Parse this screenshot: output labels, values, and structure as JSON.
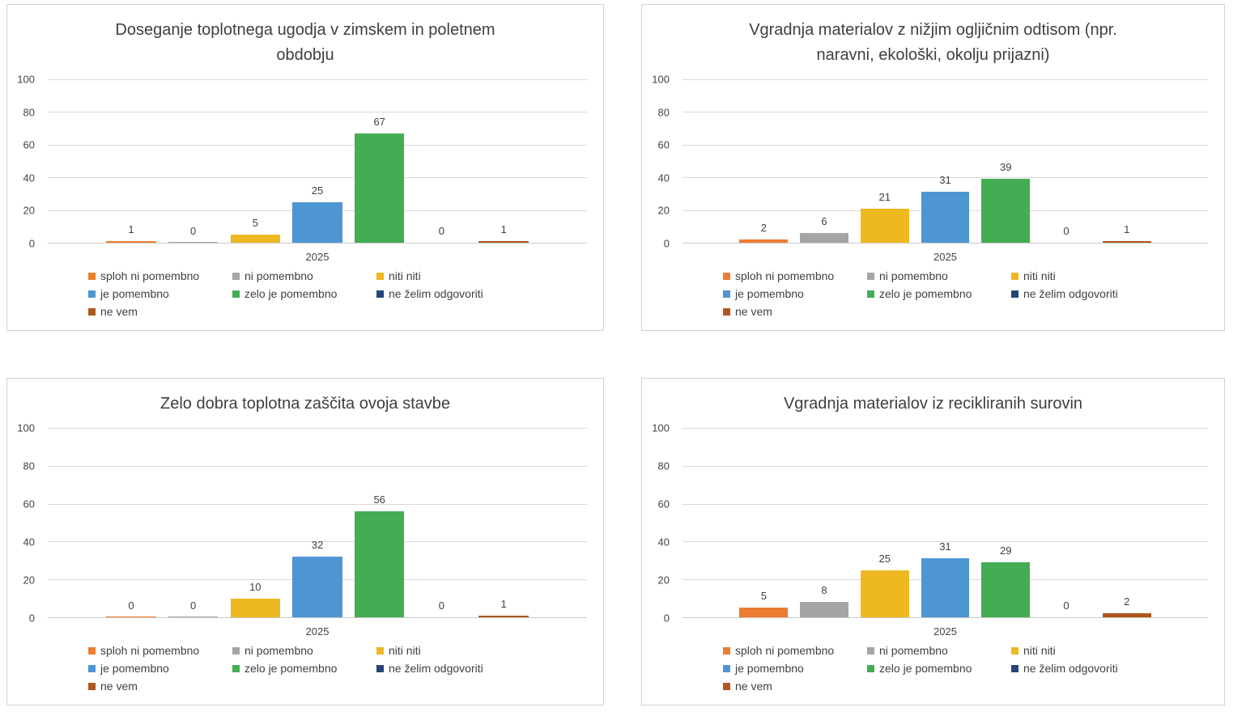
{
  "palette": {
    "page_background": "#FFFFFF",
    "panel_border": "#D2D2D2",
    "title_color": "#3F3F3F",
    "tick_color": "#444444",
    "gridline_color": "#D9D9D9",
    "axis_line_color": "#C9C9C9",
    "series_colors": {
      "sploh_ni_pomembno": "#ED7D31",
      "ni_pomembno": "#A5A5A5",
      "niti_niti": "#EEB820",
      "je_pomembno": "#4E96D3",
      "zelo_je_pomembno": "#44AD53",
      "ne_zelim_odgovoriti": "#24457C",
      "ne_vem": "#B0571D"
    }
  },
  "chart_data": [
    {
      "type": "bar",
      "title": "Doseganje toplotnega ugodja v zimskem in poletnem obdobju",
      "title_lines": [
        "Doseganje toplotnega ugodja v zimskem in poletnem",
        "obdobju"
      ],
      "categories": [
        "2025"
      ],
      "series": [
        {
          "name": "sploh ni pomembno",
          "color": "#ED7D31",
          "values": [
            1
          ]
        },
        {
          "name": "ni pomembno",
          "color": "#A5A5A5",
          "values": [
            0
          ]
        },
        {
          "name": "niti niti",
          "color": "#EEB820",
          "values": [
            5
          ]
        },
        {
          "name": "je pomembno",
          "color": "#4E96D3",
          "values": [
            25
          ]
        },
        {
          "name": "zelo je pomembno",
          "color": "#44AD53",
          "values": [
            67
          ]
        },
        {
          "name": "ne želim odgovoriti",
          "color": "#24457C",
          "values": [
            0
          ]
        },
        {
          "name": "ne vem",
          "color": "#B0571D",
          "values": [
            1
          ]
        }
      ],
      "ylim": [
        0,
        100
      ],
      "yticks": [
        0,
        20,
        40,
        60,
        80,
        100
      ],
      "grid": true,
      "data_labels": true,
      "legend_position": "bottom"
    },
    {
      "type": "bar",
      "title": "Vgradnja materialov z nižjim ogljičnim odtisom (npr. naravni, ekološki, okolju prijazni)",
      "title_lines": [
        "Vgradnja materialov z nižjim ogljičnim odtisom (npr.",
        "naravni, ekološki, okolju prijazni)"
      ],
      "categories": [
        "2025"
      ],
      "series": [
        {
          "name": "sploh ni pomembno",
          "color": "#ED7D31",
          "values": [
            2
          ]
        },
        {
          "name": "ni pomembno",
          "color": "#A5A5A5",
          "values": [
            6
          ]
        },
        {
          "name": "niti niti",
          "color": "#EEB820",
          "values": [
            21
          ]
        },
        {
          "name": "je pomembno",
          "color": "#4E96D3",
          "values": [
            31
          ]
        },
        {
          "name": "zelo je pomembno",
          "color": "#44AD53",
          "values": [
            39
          ]
        },
        {
          "name": "ne želim odgovoriti",
          "color": "#24457C",
          "values": [
            0
          ]
        },
        {
          "name": "ne vem",
          "color": "#B0571D",
          "values": [
            1
          ]
        }
      ],
      "ylim": [
        0,
        100
      ],
      "yticks": [
        0,
        20,
        40,
        60,
        80,
        100
      ],
      "grid": true,
      "data_labels": true,
      "legend_position": "bottom"
    },
    {
      "type": "bar",
      "title": "Zelo dobra toplotna zaščita ovoja stavbe",
      "title_lines": [
        "Zelo dobra toplotna zaščita ovoja stavbe"
      ],
      "categories": [
        "2025"
      ],
      "series": [
        {
          "name": "sploh ni pomembno",
          "color": "#ED7D31",
          "values": [
            0
          ]
        },
        {
          "name": "ni pomembno",
          "color": "#A5A5A5",
          "values": [
            0
          ]
        },
        {
          "name": "niti niti",
          "color": "#EEB820",
          "values": [
            10
          ]
        },
        {
          "name": "je pomembno",
          "color": "#4E96D3",
          "values": [
            32
          ]
        },
        {
          "name": "zelo je pomembno",
          "color": "#44AD53",
          "values": [
            56
          ]
        },
        {
          "name": "ne želim odgovoriti",
          "color": "#24457C",
          "values": [
            0
          ]
        },
        {
          "name": "ne vem",
          "color": "#B0571D",
          "values": [
            1
          ]
        }
      ],
      "ylim": [
        0,
        100
      ],
      "yticks": [
        0,
        20,
        40,
        60,
        80,
        100
      ],
      "grid": true,
      "data_labels": true,
      "legend_position": "bottom"
    },
    {
      "type": "bar",
      "title": "Vgradnja materialov iz recikliranih surovin",
      "title_lines": [
        "Vgradnja materialov iz recikliranih surovin"
      ],
      "categories": [
        "2025"
      ],
      "series": [
        {
          "name": "sploh ni pomembno",
          "color": "#ED7D31",
          "values": [
            5
          ]
        },
        {
          "name": "ni pomembno",
          "color": "#A5A5A5",
          "values": [
            8
          ]
        },
        {
          "name": "niti niti",
          "color": "#EEB820",
          "values": [
            25
          ]
        },
        {
          "name": "je pomembno",
          "color": "#4E96D3",
          "values": [
            31
          ]
        },
        {
          "name": "zelo je pomembno",
          "color": "#44AD53",
          "values": [
            29
          ]
        },
        {
          "name": "ne želim odgovoriti",
          "color": "#24457C",
          "values": [
            0
          ]
        },
        {
          "name": "ne vem",
          "color": "#B0571D",
          "values": [
            2
          ]
        }
      ],
      "ylim": [
        0,
        100
      ],
      "yticks": [
        0,
        20,
        40,
        60,
        80,
        100
      ],
      "grid": true,
      "data_labels": true,
      "legend_position": "bottom"
    }
  ]
}
